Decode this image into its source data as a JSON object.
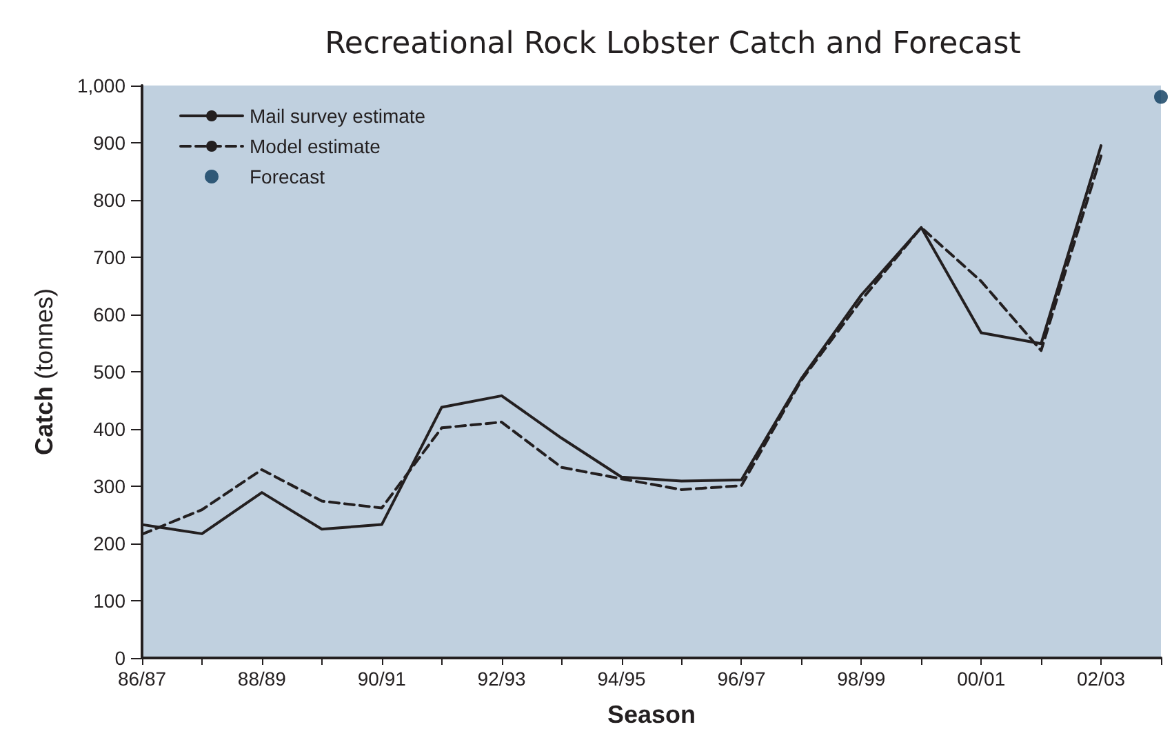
{
  "chart_data": {
    "type": "line",
    "title": "Recreational Rock Lobster Catch and Forecast",
    "xlabel": "Season",
    "ylabel": "Catch (tonnes)",
    "categories": [
      "86/87",
      null,
      "88/89",
      null,
      "90/91",
      null,
      "92/93",
      null,
      "94/95",
      null,
      "96/97",
      null,
      "98/99",
      null,
      "00/01",
      null,
      "02/03",
      null
    ],
    "series": [
      {
        "name": "Mail survey estimate",
        "color": "#231f20",
        "line_style": "solid",
        "values": [
          233,
          217,
          289,
          225,
          233,
          438,
          458,
          384,
          316,
          309,
          311,
          488,
          634,
          752,
          568,
          549,
          895,
          null
        ]
      },
      {
        "name": "Model estimate",
        "color": "#231f20",
        "line_style": "dashed",
        "values": [
          216,
          259,
          329,
          274,
          262,
          402,
          412,
          333,
          313,
          294,
          301,
          485,
          625,
          752,
          658,
          537,
          877,
          null
        ]
      },
      {
        "name": "Forecast",
        "type": "scatter",
        "marker": "circle",
        "color": "#0a3a5c",
        "values": [
          null,
          null,
          null,
          null,
          null,
          null,
          null,
          null,
          null,
          null,
          null,
          null,
          null,
          null,
          null,
          null,
          null,
          980
        ]
      }
    ],
    "ylim": [
      0,
      1000
    ],
    "yticks": [
      0,
      100,
      200,
      300,
      400,
      500,
      600,
      700,
      800,
      900,
      {
        "value": 1000,
        "label": "1,000"
      }
    ],
    "grid": false,
    "legend": "top left",
    "marker": "none"
  }
}
